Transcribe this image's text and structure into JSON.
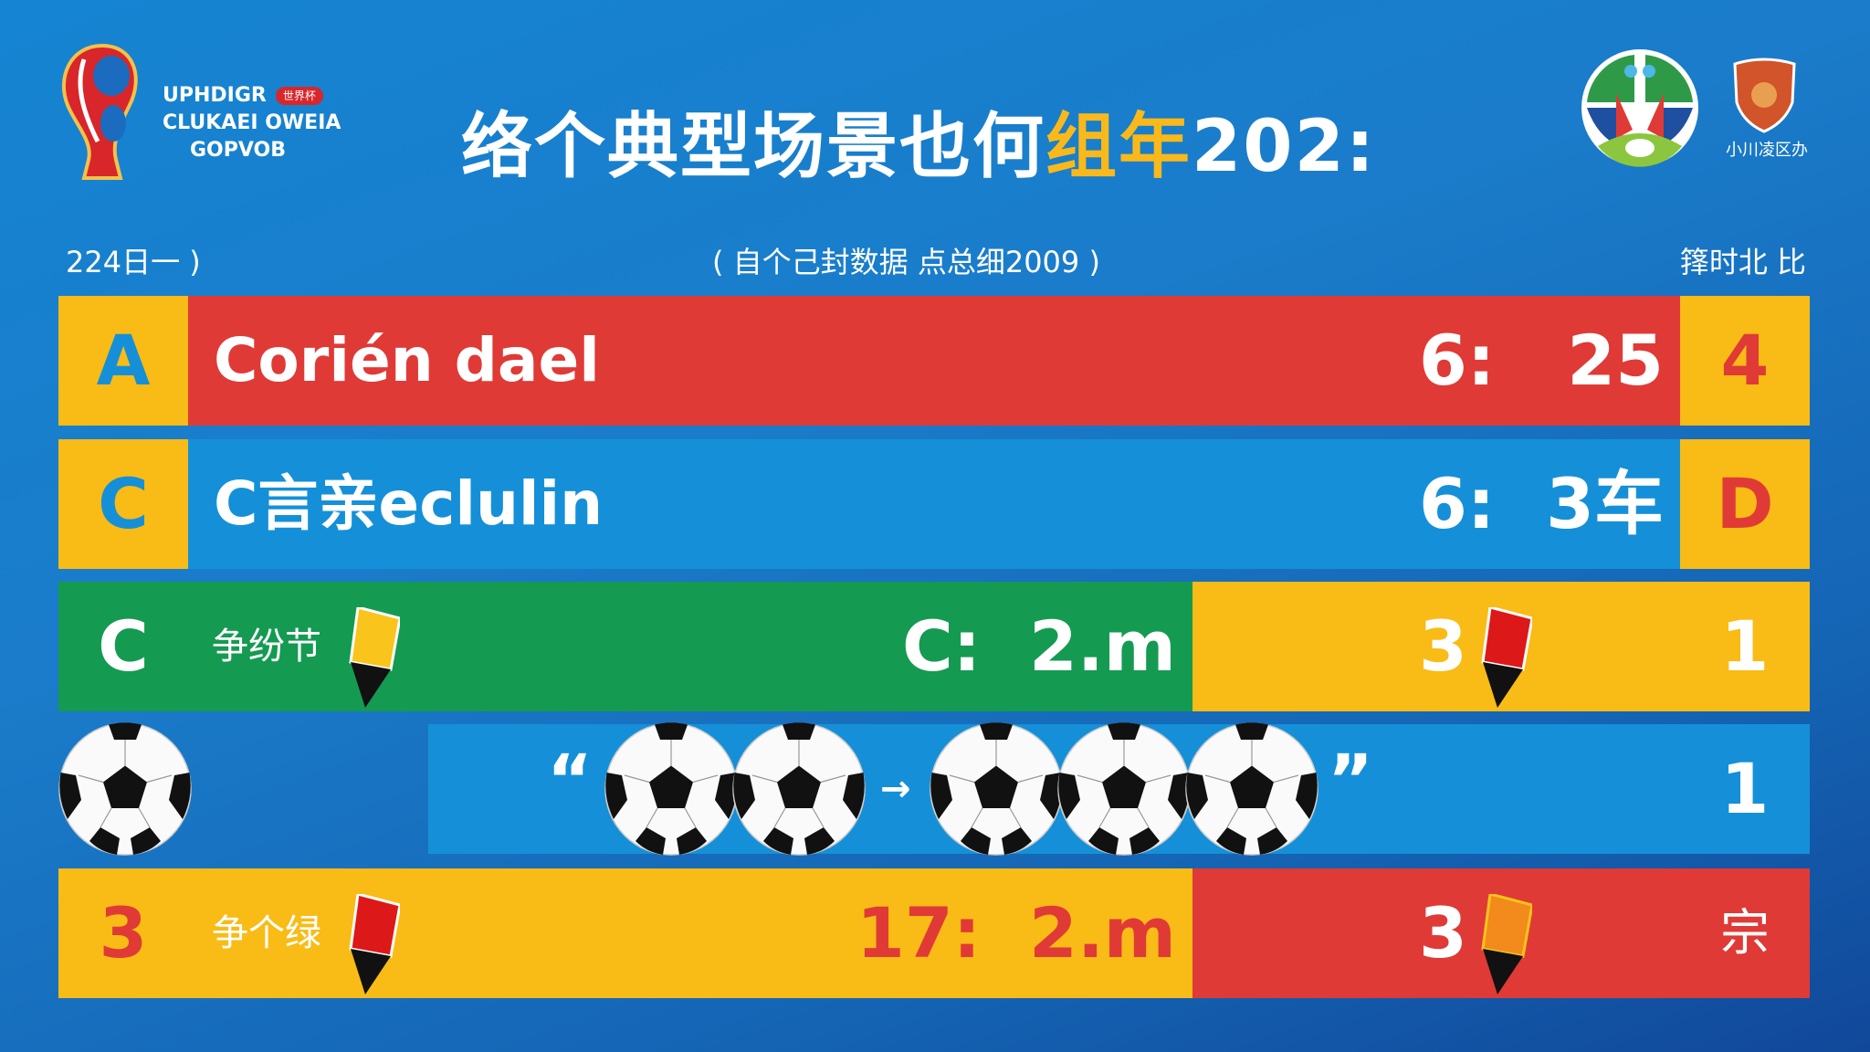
{
  "header": {
    "logo_left_text": [
      "UPHDIGR",
      "CLUKAEI OWEIA",
      "GOPVOB"
    ],
    "logo_left_badge": "世界杯",
    "title_part1": "络个典型场景也何",
    "title_highlight": "组年",
    "title_part2": "202:",
    "logo_right_text": "小川凌区办"
  },
  "subheader": {
    "left": "224日一 )",
    "center": "( 自个己封数据 点总细2009 )",
    "right": "箨时北 比"
  },
  "rows": [
    {
      "letter": "A",
      "name": "Corién dael",
      "score_left": "6:",
      "score_right": "25",
      "right": "4",
      "bg": "#e03a36"
    },
    {
      "letter": "C",
      "name": "C言亲eclulin",
      "score_left": "6:",
      "score_right": "3车",
      "right": "D",
      "bg": "#1590d8"
    },
    {
      "letter": "C",
      "name": "争纷节",
      "score": "C:  2.m",
      "count": "3",
      "right": "1",
      "card1": "yellow",
      "card2": "red"
    },
    {
      "quote_open": "“",
      "arrow": "→",
      "quote_close": "”",
      "right": "1"
    },
    {
      "letter": "3",
      "name": "争个绿",
      "score": "17:  2.m",
      "count": "3",
      "right": "宗",
      "card1": "red",
      "card2": "orange"
    }
  ],
  "colors": {
    "red": "#e03a36",
    "blue": "#1590d8",
    "yellow": "#f9bb16",
    "green": "#159a52",
    "orange": "#f28a1c"
  }
}
